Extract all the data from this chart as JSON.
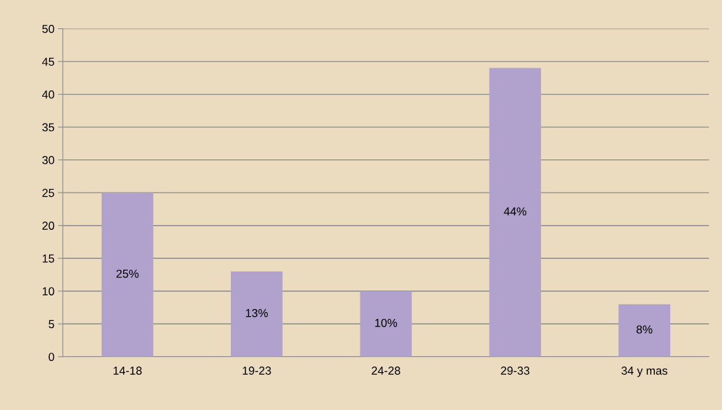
{
  "chart_data": {
    "type": "bar",
    "categories": [
      "14-18",
      "19-23",
      "24-28",
      "29-33",
      "34 y mas"
    ],
    "values": [
      25,
      13,
      10,
      44,
      8
    ],
    "value_labels": [
      "25%",
      "13%",
      "10%",
      "44%",
      "8%"
    ],
    "color": "#b0a2cc",
    "ylim": [
      0,
      50
    ],
    "yticks": [
      0,
      5,
      10,
      15,
      20,
      25,
      30,
      35,
      40,
      45,
      50
    ],
    "grid": "y",
    "legend": false
  }
}
